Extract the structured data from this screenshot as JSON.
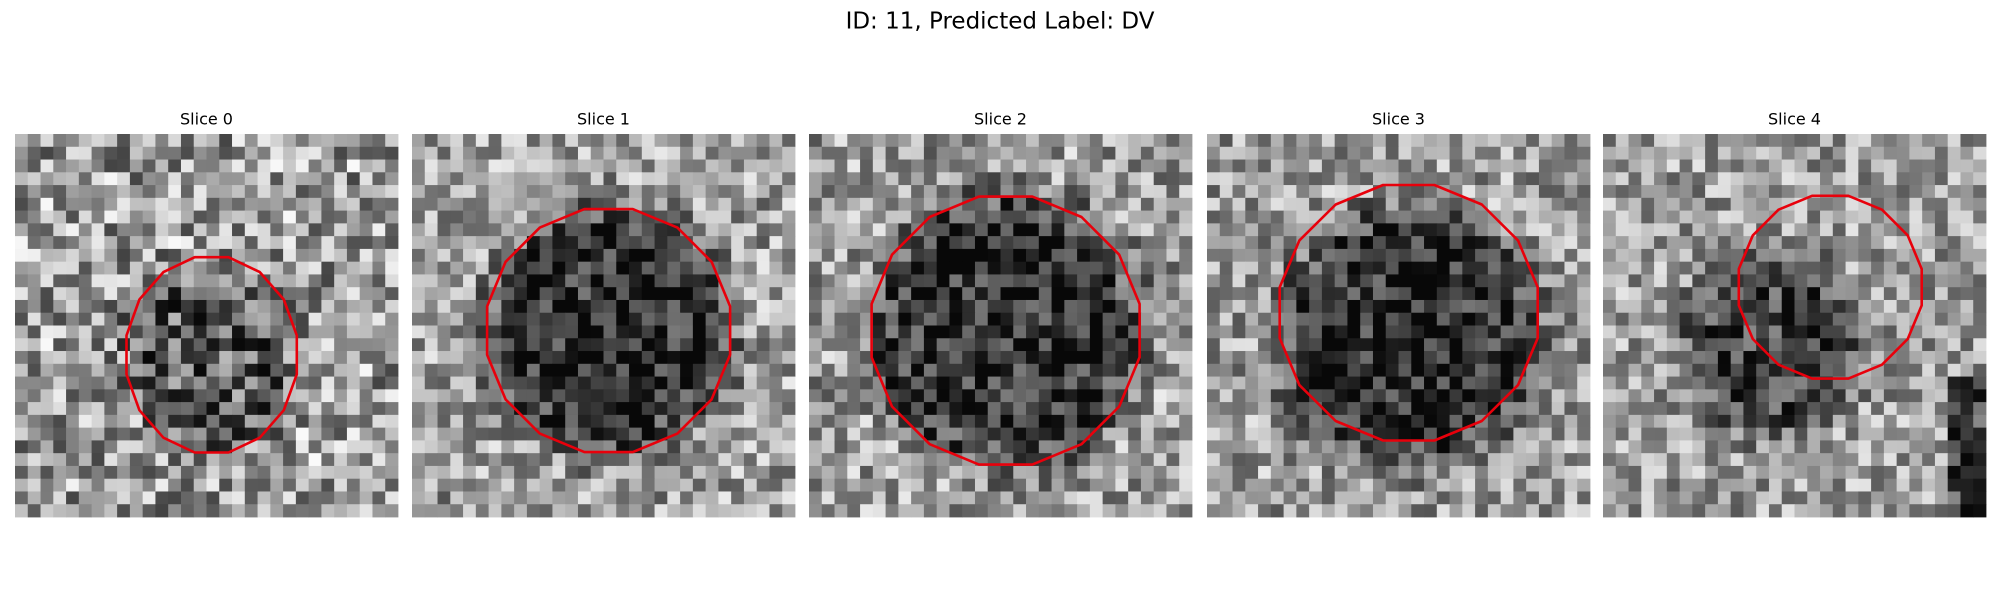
{
  "title": "ID: 11, Predicted Label: DV",
  "panels": [
    {
      "title": "Slice 0"
    },
    {
      "title": "Slice 1"
    },
    {
      "title": "Slice 2"
    },
    {
      "title": "Slice 3"
    },
    {
      "title": "Slice 4"
    }
  ]
}
